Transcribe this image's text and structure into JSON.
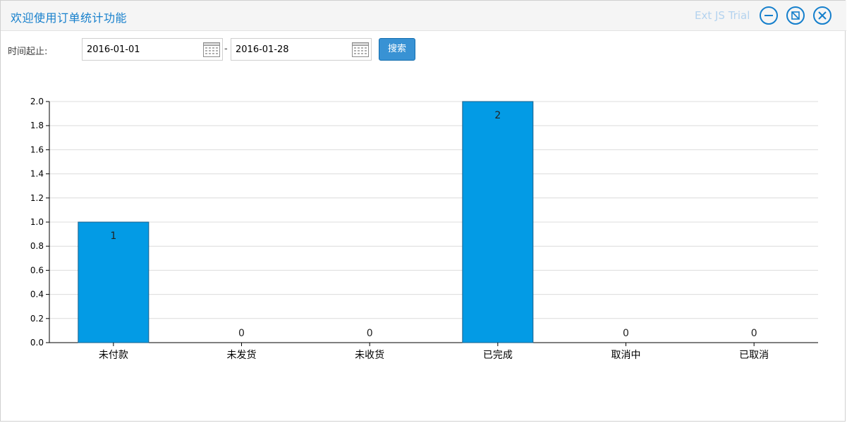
{
  "window": {
    "title": "欢迎使用订单统计功能",
    "trial_label": "Ext JS Trial"
  },
  "filter": {
    "label": "时间起止:",
    "start_date": "2016-01-01",
    "end_date": "2016-01-28",
    "separator": "-",
    "search_label": "搜索"
  },
  "chart_data": {
    "type": "bar",
    "categories": [
      "未付款",
      "未发货",
      "未收货",
      "已完成",
      "取消中",
      "已取消"
    ],
    "values": [
      1,
      0,
      0,
      2,
      0,
      0
    ],
    "ylim": [
      0,
      2.0
    ],
    "y_ticks": [
      "0.0",
      "0.2",
      "0.4",
      "0.6",
      "0.8",
      "1.0",
      "1.2",
      "1.4",
      "1.6",
      "1.8",
      "2.0"
    ],
    "grid": true,
    "bar_color": "#039be5",
    "data_labels": [
      "1",
      "0",
      "0",
      "2",
      "0",
      "0"
    ]
  },
  "colors": {
    "accent": "#157fcc",
    "button": "#3892d4",
    "bar": "#039be5"
  },
  "icons": {
    "minimize": "minimize-icon",
    "maximize": "maximize-icon",
    "close": "close-icon",
    "calendar": "calendar-icon"
  }
}
